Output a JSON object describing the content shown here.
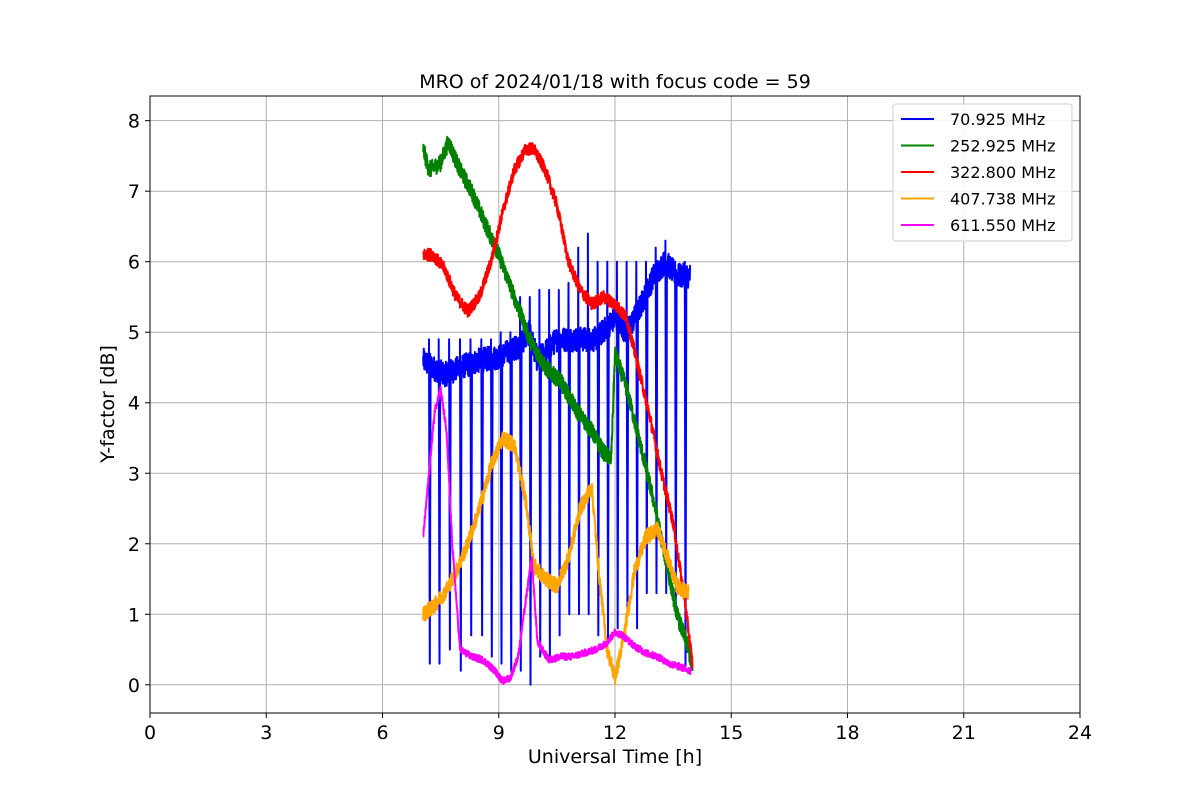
{
  "chart_data": {
    "type": "line",
    "title": "MRO of 2024/01/18 with focus code = 59",
    "xlabel": "Universal Time [h]",
    "ylabel": "Y-factor [dB]",
    "xlim": [
      0,
      24
    ],
    "ylim": [
      -0.4,
      8.35
    ],
    "xticks": [
      0,
      3,
      6,
      9,
      12,
      15,
      18,
      21,
      24
    ],
    "yticks": [
      0,
      1,
      2,
      3,
      4,
      5,
      6,
      7,
      8
    ],
    "grid": true,
    "legend_position": "top-right",
    "series": [
      {
        "name": " 70.925 MHz",
        "color": "#0000ff",
        "x": [
          7.05,
          7.3,
          7.6,
          8.0,
          8.5,
          9.0,
          9.5,
          9.8,
          10.0,
          10.5,
          11.0,
          11.5,
          12.0,
          12.3,
          12.6,
          13.0,
          13.3,
          13.6,
          13.95
        ],
        "y": [
          4.6,
          4.5,
          4.4,
          4.5,
          4.6,
          4.65,
          4.8,
          5.0,
          4.6,
          4.9,
          4.9,
          4.9,
          5.2,
          5.0,
          5.3,
          5.8,
          6.0,
          5.8,
          5.8
        ],
        "dips": [
          7.2,
          7.45,
          7.72,
          8.0,
          8.27,
          8.55,
          8.8,
          9.05,
          9.3,
          9.55,
          9.8,
          10.05,
          10.3,
          10.55,
          10.8,
          11.05,
          11.3,
          11.55,
          11.8,
          12.05,
          12.3,
          12.55,
          12.8,
          13.05,
          13.3,
          13.55,
          13.8
        ],
        "dip_min": [
          0.3,
          0.3,
          0.5,
          0.2,
          0.7,
          0.7,
          0.4,
          0.3,
          0.2,
          0.2,
          0.0,
          0.4,
          0.4,
          0.7,
          1.0,
          1.0,
          1.0,
          0.7,
          0.6,
          0.8,
          1.1,
          0.8,
          1.3,
          1.3,
          1.3,
          1.0,
          0.2
        ],
        "dip_max": [
          4.9,
          4.9,
          4.9,
          4.9,
          4.9,
          4.9,
          4.9,
          5.0,
          5.0,
          5.5,
          5.5,
          5.6,
          5.6,
          5.6,
          5.7,
          6.2,
          6.4,
          6.0,
          6.0,
          6.0,
          6.0,
          6.0,
          6.0,
          6.2,
          6.3,
          6.0,
          6.0
        ]
      },
      {
        "name": "252.925 MHz",
        "color": "#008000",
        "x": [
          7.05,
          7.2,
          7.5,
          7.7,
          8.0,
          8.3,
          8.6,
          9.0,
          9.4,
          9.8,
          10.2,
          10.6,
          11.0,
          11.4,
          11.7,
          11.9,
          12.0,
          12.3,
          12.7,
          13.0,
          13.3,
          13.6,
          13.9,
          14.0
        ],
        "y": [
          7.6,
          7.3,
          7.4,
          7.7,
          7.3,
          7.0,
          6.6,
          6.1,
          5.5,
          4.9,
          4.5,
          4.3,
          3.9,
          3.6,
          3.3,
          3.2,
          4.7,
          4.2,
          3.3,
          2.6,
          1.8,
          1.0,
          0.5,
          0.2
        ],
        "noise": 0.12
      },
      {
        "name": "322.800 MHz",
        "color": "#ff0000",
        "x": [
          7.05,
          7.3,
          7.6,
          7.9,
          8.2,
          8.5,
          8.8,
          9.1,
          9.4,
          9.7,
          9.9,
          10.2,
          10.5,
          10.8,
          11.1,
          11.4,
          11.7,
          12.0,
          12.3,
          12.6,
          12.9,
          13.2,
          13.5,
          13.8,
          14.0
        ],
        "y": [
          6.1,
          6.1,
          5.9,
          5.5,
          5.3,
          5.5,
          6.0,
          6.7,
          7.3,
          7.6,
          7.6,
          7.3,
          6.8,
          6.0,
          5.6,
          5.4,
          5.5,
          5.4,
          5.2,
          4.5,
          3.8,
          3.0,
          2.3,
          1.2,
          0.3
        ],
        "noise": 0.09
      },
      {
        "name": "407.738 MHz",
        "color": "#ffa500",
        "x": [
          7.05,
          7.3,
          7.6,
          7.9,
          8.2,
          8.5,
          8.8,
          9.1,
          9.4,
          9.7,
          9.9,
          10.2,
          10.5,
          10.8,
          11.1,
          11.4,
          11.6,
          11.8,
          12.0,
          12.2,
          12.5,
          12.8,
          13.1,
          13.3,
          13.6,
          13.9
        ],
        "y": [
          1.0,
          1.1,
          1.3,
          1.6,
          2.0,
          2.5,
          3.1,
          3.5,
          3.4,
          2.6,
          1.7,
          1.5,
          1.4,
          1.8,
          2.5,
          2.8,
          1.5,
          0.5,
          0.1,
          0.6,
          1.6,
          2.1,
          2.2,
          1.9,
          1.4,
          1.3
        ],
        "noise": 0.11
      },
      {
        "name": "611.550 MHz",
        "color": "#ff00ff",
        "x": [
          7.05,
          7.2,
          7.35,
          7.5,
          7.65,
          7.8,
          8.0,
          8.3,
          8.6,
          8.9,
          9.1,
          9.3,
          9.5,
          9.7,
          9.85,
          10.0,
          10.3,
          10.6,
          10.9,
          11.2,
          11.5,
          11.8,
          12.0,
          12.2,
          12.5,
          12.8,
          13.1,
          13.4,
          13.7,
          13.95
        ],
        "y": [
          2.1,
          3.0,
          3.9,
          4.2,
          3.6,
          2.0,
          0.5,
          0.4,
          0.35,
          0.2,
          0.05,
          0.1,
          0.4,
          1.2,
          1.8,
          0.6,
          0.35,
          0.4,
          0.4,
          0.45,
          0.5,
          0.6,
          0.75,
          0.7,
          0.55,
          0.45,
          0.4,
          0.3,
          0.25,
          0.2
        ],
        "noise": 0.05
      }
    ]
  }
}
